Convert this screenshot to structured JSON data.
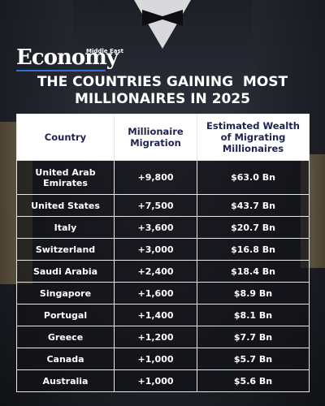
{
  "brand": {
    "small": "Middle East",
    "name": "Economy"
  },
  "title_lines": [
    "THE COUNTRIES GAINING  MOST",
    "MILLIONAIRES IN 2025"
  ],
  "table": {
    "header": [
      "Country",
      "Millionaire Migration",
      "Estimated Wealth of Migrating Millionaires"
    ],
    "rows": [
      [
        "United Arab Emirates",
        "+9,800",
        "$63.0 Bn"
      ],
      [
        "United States",
        "+7,500",
        "$43.7 Bn"
      ],
      [
        "Italy",
        "+3,600",
        "$20.7 Bn"
      ],
      [
        "Switzerland",
        "+3,000",
        "$16.8 Bn"
      ],
      [
        "Saudi Arabia",
        "+2,400",
        "$18.4 Bn"
      ],
      [
        "Singapore",
        "+1,600",
        "$8.9 Bn"
      ],
      [
        "Portugal",
        "+1,400",
        "$8.1 Bn"
      ],
      [
        "Greece",
        "+1,200",
        "$7.7 Bn"
      ],
      [
        "Canada",
        "+1,000",
        "$5.7 Bn"
      ],
      [
        "Australia",
        "+1,000",
        "$5.6 Bn"
      ]
    ]
  }
}
